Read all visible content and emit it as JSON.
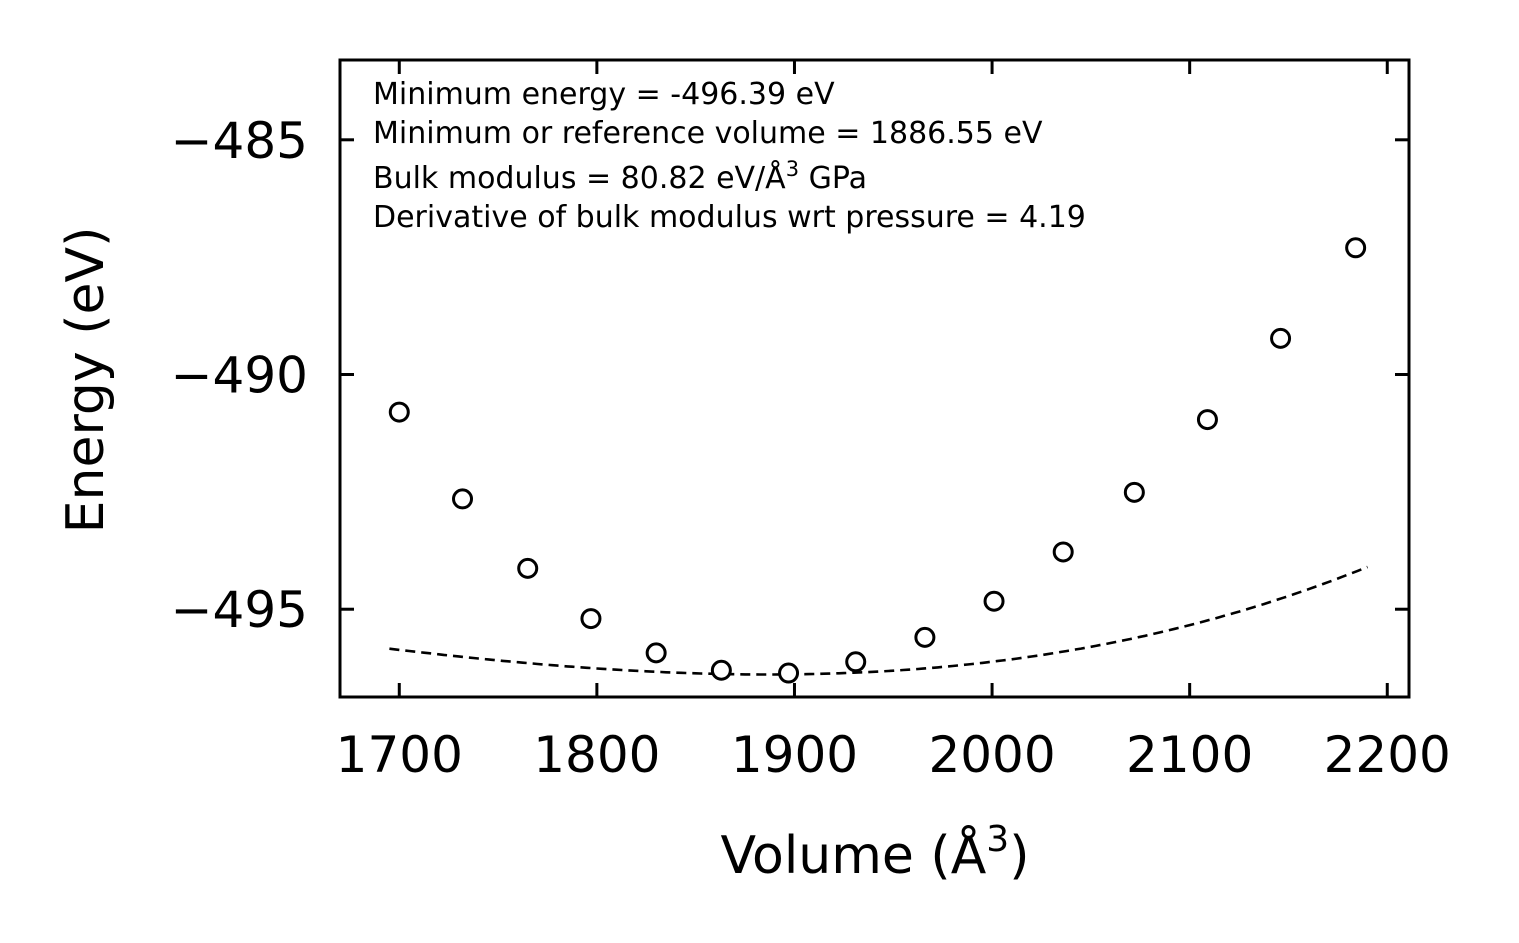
{
  "chart_data": {
    "type": "scatter",
    "xlabel": "Volume (Å",
    "xlabel_sup": "3",
    "xlabel_close": ")",
    "ylabel": "Energy (eV)",
    "xlim": [
      1670,
      2211
    ],
    "ylim": [
      -496.87,
      -483.3
    ],
    "xticks": [
      1700,
      1800,
      1900,
      2000,
      2100,
      2200
    ],
    "xtick_labels": [
      "1700",
      "1800",
      "1900",
      "2000",
      "2100",
      "2200"
    ],
    "yticks": [
      -485,
      -490,
      -495
    ],
    "ytick_labels": [
      "−485",
      "−490",
      "−495"
    ],
    "annotations": [
      "Minimum energy = -496.39 eV",
      "Minimum or reference volume = 1886.55 eV",
      "Bulk modulus = 80.82 eV/Å",
      "Derivative of bulk modulus wrt pressure = 4.19"
    ],
    "annotation_sup": "3",
    "annotation_suffix": " GPa",
    "series": [
      {
        "name": "data",
        "marker": "open-circle",
        "x": [
          1700,
          1732,
          1765,
          1797,
          1830,
          1863,
          1897,
          1931,
          1966,
          2001,
          2036,
          2072,
          2109,
          2146,
          2184
        ],
        "y": [
          -490.8,
          -492.65,
          -494.13,
          -495.2,
          -495.93,
          -496.3,
          -496.36,
          -496.12,
          -495.6,
          -494.83,
          -493.78,
          -492.51,
          -490.96,
          -489.23,
          -487.3
        ]
      },
      {
        "name": "fit",
        "style": "dashed",
        "fit": {
          "E0": -496.39,
          "V0": 1886.55,
          "a": 1.88e-05,
          "b": 2e-08
        },
        "x_range": [
          1695,
          2190
        ]
      }
    ]
  }
}
